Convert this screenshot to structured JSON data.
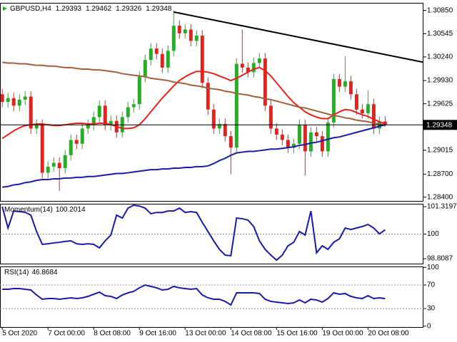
{
  "chart_data": [
    {
      "type": "candlestick",
      "title": "GBPUSD,H4",
      "categories": [
        "5 Oct 2020",
        null,
        null,
        null,
        null,
        null,
        null,
        null,
        "7 Oct 00:00",
        null,
        null,
        null,
        null,
        null,
        null,
        null,
        "8 Oct 08:00",
        null,
        null,
        null,
        null,
        null,
        null,
        null,
        "9 Oct 16:00",
        null,
        null,
        null,
        null,
        null,
        null,
        null,
        "13 Oct 00:00",
        null,
        null,
        null,
        null,
        null,
        null,
        null,
        "14 Oct 08:00",
        null,
        null,
        null,
        null,
        null,
        null,
        null,
        "15 Oct 16:00",
        null,
        null,
        null,
        null,
        null,
        null,
        null,
        "19 Oct 00:00",
        null,
        null,
        null,
        null,
        null,
        null,
        null,
        "20 Oct 08:00",
        null,
        null,
        null
      ],
      "open": [
        1.2975,
        1.2965,
        1.297,
        1.296,
        1.2968,
        1.2972,
        1.293,
        1.2935,
        1.2872,
        1.288,
        1.2885,
        1.2878,
        1.2895,
        1.2915,
        1.291,
        1.293,
        1.2935,
        1.2945,
        1.296,
        1.2935,
        1.294,
        1.2925,
        1.2945,
        1.2958,
        1.2962,
        1.2998,
        1.302,
        1.3035,
        1.3028,
        1.301,
        1.3032,
        1.3065,
        1.3055,
        1.306,
        1.3045,
        1.3052,
        1.299,
        1.2955,
        1.293,
        1.2936,
        1.292,
        1.2905,
        1.3015,
        1.301,
        1.3004,
        1.3016,
        1.3022,
        1.296,
        1.293,
        1.2922,
        1.2915,
        1.2905,
        1.291,
        1.2935,
        1.29,
        1.2925,
        1.292,
        1.29,
        1.2938,
        1.2995,
        1.2985,
        1.2992,
        1.2975,
        1.2955,
        1.295,
        1.2962,
        1.293,
        1.29393
      ],
      "high": [
        1.2982,
        1.2977,
        1.2977,
        1.2975,
        1.2979,
        1.2979,
        1.2942,
        1.2942,
        1.2887,
        1.2892,
        1.2892,
        1.2902,
        1.2922,
        1.2922,
        1.2937,
        1.2942,
        1.2952,
        1.2967,
        1.2967,
        1.2947,
        1.2947,
        1.2952,
        1.2965,
        1.2969,
        1.3005,
        1.3027,
        1.3042,
        1.3042,
        1.3035,
        1.3039,
        1.3085,
        1.3072,
        1.3067,
        1.3067,
        1.3059,
        1.3059,
        1.2997,
        1.2962,
        1.2943,
        1.2943,
        1.2927,
        1.3022,
        1.306,
        1.3017,
        1.3023,
        1.3029,
        1.3029,
        1.2967,
        1.2937,
        1.2929,
        1.2922,
        1.2917,
        1.2942,
        1.2942,
        1.2932,
        1.2932,
        1.2927,
        1.2945,
        1.3002,
        1.3002,
        1.3025,
        1.2999,
        1.2982,
        1.2962,
        1.298,
        1.2969,
        1.2946,
        1.29462
      ],
      "low": [
        1.2958,
        1.2958,
        1.2953,
        1.2953,
        1.2961,
        1.2923,
        1.2923,
        1.2865,
        1.2865,
        1.2873,
        1.2848,
        1.2871,
        1.2888,
        1.2903,
        1.2903,
        1.2923,
        1.2928,
        1.2938,
        1.2928,
        1.2928,
        1.2918,
        1.2918,
        1.2938,
        1.2951,
        1.2955,
        1.2991,
        1.3013,
        1.3021,
        1.3003,
        1.3003,
        1.3025,
        1.3048,
        1.3048,
        1.3038,
        1.3038,
        1.2983,
        1.2948,
        1.2923,
        1.2923,
        1.2913,
        1.287,
        1.2898,
        1.3003,
        1.2997,
        1.2997,
        1.3009,
        1.2953,
        1.2923,
        1.2915,
        1.2908,
        1.2898,
        1.2898,
        1.2903,
        1.2868,
        1.2893,
        1.2913,
        1.2893,
        1.2893,
        1.2931,
        1.2978,
        1.2978,
        1.2968,
        1.2948,
        1.2943,
        1.2943,
        1.2923,
        1.2923,
        1.29326
      ],
      "close": [
        1.2965,
        1.297,
        1.296,
        1.2968,
        1.2972,
        1.293,
        1.2935,
        1.2872,
        1.288,
        1.2885,
        1.2878,
        1.2895,
        1.2915,
        1.291,
        1.293,
        1.2935,
        1.2945,
        1.296,
        1.2935,
        1.294,
        1.2925,
        1.2945,
        1.2958,
        1.2962,
        1.2998,
        1.302,
        1.3035,
        1.3028,
        1.301,
        1.3032,
        1.3065,
        1.3055,
        1.306,
        1.3045,
        1.3052,
        1.299,
        1.2955,
        1.293,
        1.2936,
        1.292,
        1.2905,
        1.3015,
        1.301,
        1.3004,
        1.3016,
        1.3022,
        1.296,
        1.293,
        1.2922,
        1.2915,
        1.2905,
        1.291,
        1.2935,
        1.29,
        1.2925,
        1.292,
        1.29,
        1.2938,
        1.2995,
        1.2985,
        1.2992,
        1.2975,
        1.2955,
        1.295,
        1.2962,
        1.293,
        1.29393,
        1.29348
      ],
      "up_color": "#1fb31f",
      "down_color": "#e3231b",
      "series": [
        {
          "color": "#e3231b",
          "values": [
            1.2917,
            1.2922,
            1.2927,
            1.2931,
            1.2934,
            1.2935,
            1.2936,
            1.2936,
            1.2935,
            1.2934,
            1.2934,
            1.2935,
            1.2936,
            1.2937,
            1.2937,
            1.2936,
            1.2936,
            1.2937,
            1.2937,
            1.2935,
            1.2933,
            1.293,
            1.293,
            1.2931,
            1.2935,
            1.2943,
            1.2952,
            1.2961,
            1.297,
            1.2978,
            1.2986,
            1.2993,
            1.2998,
            1.3002,
            1.3005,
            1.3005,
            1.3004,
            1.3002,
            1.2999,
            1.2996,
            1.2993,
            1.2996,
            1.3,
            1.3004,
            1.3008,
            1.301,
            1.3006,
            1.2999,
            1.299,
            1.2981,
            1.2972,
            1.2964,
            1.2958,
            1.2952,
            1.2948,
            1.2945,
            1.2943,
            1.2943,
            1.2948,
            1.2952,
            1.2955,
            1.2954,
            1.2951,
            1.2948,
            1.2946,
            1.2942,
            1.2939,
            1.2936
          ]
        },
        {
          "color": "#a0603a",
          "values": [
            1.3017,
            1.3016,
            1.3016,
            1.3015,
            1.3015,
            1.3014,
            1.3013,
            1.3013,
            1.3012,
            1.3012,
            1.3011,
            1.301,
            1.301,
            1.3009,
            1.3008,
            1.3008,
            1.3007,
            1.3007,
            1.3006,
            1.3005,
            1.3004,
            1.3002,
            1.3001,
            1.3,
            1.2999,
            1.2998,
            1.2996,
            1.2995,
            1.2994,
            1.2993,
            1.2991,
            1.299,
            1.2989,
            1.2987,
            1.2986,
            1.2985,
            1.2983,
            1.2982,
            1.2981,
            1.2979,
            1.2978,
            1.2976,
            1.2975,
            1.2974,
            1.2972,
            1.2971,
            1.2969,
            1.2968,
            1.2966,
            1.2964,
            1.2962,
            1.296,
            1.2958,
            1.2957,
            1.2955,
            1.2953,
            1.2951,
            1.2949,
            1.2947,
            1.2946,
            1.2944,
            1.2943,
            1.2941,
            1.294,
            1.2939,
            1.2937,
            1.2936,
            1.2934
          ]
        },
        {
          "color": "#1a1aa8",
          "values": [
            1.2853,
            1.2854,
            1.2856,
            1.2857,
            1.2859,
            1.286,
            1.2862,
            1.2863,
            1.2863,
            1.2864,
            1.2864,
            1.2865,
            1.2865,
            1.2866,
            1.2866,
            1.2867,
            1.2867,
            1.2868,
            1.2869,
            1.287,
            1.2871,
            1.2871,
            1.2872,
            1.2873,
            1.2874,
            1.2875,
            1.2876,
            1.2876,
            1.2877,
            1.2877,
            1.2878,
            1.2878,
            1.2879,
            1.2879,
            1.288,
            1.288,
            1.2881,
            1.2884,
            1.2888,
            1.2891,
            1.2895,
            1.2898,
            1.2899,
            1.29,
            1.29,
            1.2901,
            1.2902,
            1.2903,
            1.2903,
            1.2904,
            1.2905,
            1.2906,
            1.2908,
            1.2909,
            1.2911,
            1.2912,
            1.2914,
            1.2916,
            1.2918,
            1.2919,
            1.2921,
            1.2923,
            1.2925,
            1.2927,
            1.2929,
            1.2931,
            1.2933,
            1.2935
          ]
        }
      ],
      "trendline": {
        "x": [
          30,
          73.7
        ],
        "y": [
          1.3083,
          1.3017
        ],
        "color": "#000000"
      },
      "xlim": [
        -0.4,
        73.7
      ],
      "ylim": [
        1.2835,
        1.3095
      ],
      "yticks": [
        {
          "value": 1.3085,
          "label": "1.30850"
        },
        1.30545,
        {
          "value": 1.3024,
          "label": "1.30240"
        },
        {
          "value": 1.2993,
          "label": "1.29930"
        },
        1.29625,
        1.29015,
        {
          "value": 1.287,
          "label": "1.28700"
        },
        {
          "value": 1.284,
          "label": "1.28400"
        }
      ]
    },
    {
      "type": "line",
      "title": "Momentum(14)",
      "series": [
        {
          "color": "#1a1aa8",
          "values": [
            101.32,
            100.29,
            101.11,
            101.08,
            101.05,
            100.91,
            100.12,
            99.5,
            99.53,
            99.57,
            99.6,
            99.64,
            99.67,
            99.53,
            99.5,
            99.53,
            99.5,
            99.33,
            99.67,
            99.95,
            100.91,
            100.77,
            101.25,
            101.39,
            101.35,
            101.25,
            100.98,
            101.04,
            101.04,
            101.11,
            101.11,
            101.25,
            101.04,
            101.08,
            101.04,
            100.56,
            100.12,
            99.67,
            99.26,
            98.98,
            98.95,
            100.77,
            100.74,
            100.67,
            100.36,
            99.67,
            99.26,
            98.98,
            98.74,
            98.98,
            99.43,
            99.6,
            100.12,
            99.95,
            101.11,
            99.09,
            99.43,
            99.26,
            99.6,
            99.77,
            100.29,
            100.22,
            100.29,
            100.36,
            100.46,
            100.29,
            100.01,
            100.2014
          ]
        }
      ],
      "ylim": [
        98.57,
        101.46
      ],
      "yticks": [
        101.3197,
        100,
        98.8087
      ],
      "levels": [
        100
      ]
    },
    {
      "type": "line",
      "title": "RSI(14)",
      "series": [
        {
          "color": "#1a1aa8",
          "values": [
            62.7,
            62.7,
            63.9,
            63.9,
            62.7,
            61.5,
            53.0,
            45.8,
            47.0,
            47.0,
            45.8,
            47.0,
            48.2,
            47.0,
            48.2,
            50.6,
            54.2,
            57.9,
            51.8,
            50.6,
            47.0,
            53.0,
            56.7,
            59.1,
            65.2,
            70.0,
            67.6,
            65.2,
            61.5,
            62.7,
            67.6,
            65.2,
            63.9,
            62.7,
            63.9,
            53.0,
            48.2,
            45.8,
            45.8,
            42.1,
            36.1,
            56.7,
            56.7,
            56.7,
            56.7,
            55.5,
            45.8,
            42.1,
            40.9,
            39.7,
            38.5,
            39.7,
            44.5,
            39.7,
            45.8,
            44.5,
            40.9,
            47.0,
            56.7,
            54.2,
            55.5,
            50.6,
            48.2,
            47.0,
            51.8,
            47.0,
            48.2,
            46.8684
          ]
        }
      ],
      "ylim": [
        -1.5,
        101.5
      ],
      "yticks": [
        100,
        70,
        30,
        0
      ],
      "levels": [
        70,
        30
      ]
    }
  ]
}
